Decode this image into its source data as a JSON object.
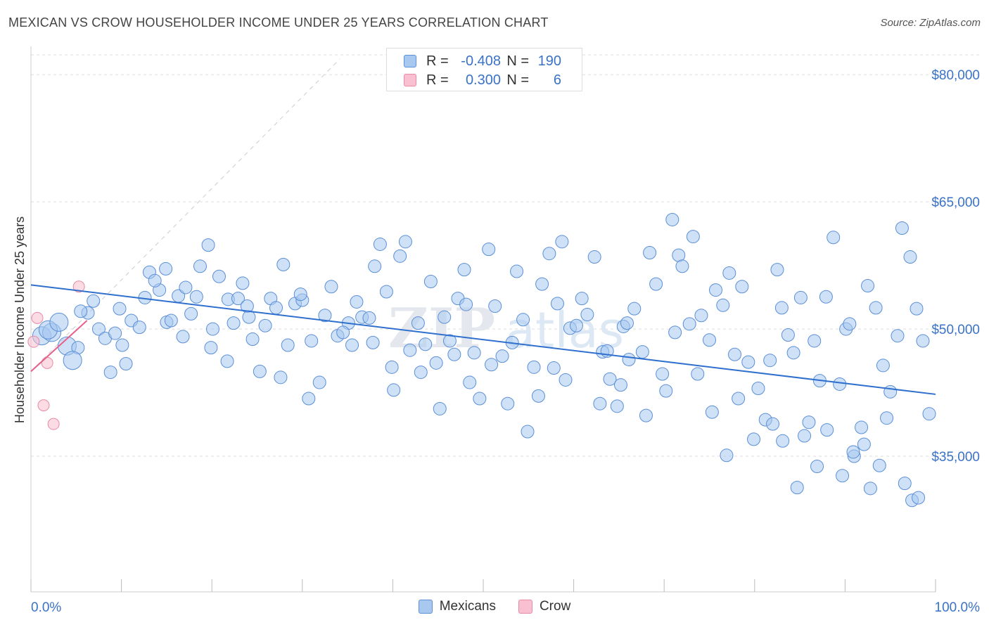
{
  "title": "MEXICAN VS CROW HOUSEHOLDER INCOME UNDER 25 YEARS CORRELATION CHART",
  "source": "Source: ZipAtlas.com",
  "legend": {
    "rows": [
      {
        "r_label": "R =",
        "r_value": "-0.408",
        "n_label": "N =",
        "n_value": "190",
        "color": "#a8c8f0",
        "border": "#5b8fd6"
      },
      {
        "r_label": "R =",
        "r_value": "0.300",
        "n_label": "N =",
        "n_value": "6",
        "color": "#f8c0d0",
        "border": "#e88aa5"
      }
    ],
    "bottom": [
      {
        "label": "Mexicans",
        "color": "#a8c8f0",
        "border": "#5b8fd6"
      },
      {
        "label": "Crow",
        "color": "#f8c0d0",
        "border": "#e88aa5"
      }
    ]
  },
  "chart_data": {
    "type": "scatter",
    "title": "MEXICAN VS CROW HOUSEHOLDER INCOME UNDER 25 YEARS CORRELATION CHART",
    "xlabel": "",
    "ylabel": "Householder Income Under 25 years",
    "xlim": [
      0,
      100
    ],
    "ylim": [
      19000,
      83000
    ],
    "x_tick_labels": [
      "0.0%",
      "100.0%"
    ],
    "y_ticks": [
      35000,
      50000,
      65000,
      80000
    ],
    "y_tick_labels": [
      "$35,000",
      "$50,000",
      "$65,000",
      "$80,000"
    ],
    "grid": true,
    "legend_position": "top-center",
    "watermark": "ZIPatlas",
    "series": [
      {
        "name": "Mexicans",
        "color": "#5b8fd6",
        "fill": "#a8c8f0",
        "trend": {
          "x": [
            0,
            100
          ],
          "y": [
            55200,
            42300
          ]
        },
        "points": [
          [
            1.2,
            49200
          ],
          [
            2.3,
            49600
          ],
          [
            4.0,
            48000
          ],
          [
            5.2,
            47800
          ],
          [
            6.3,
            51900
          ],
          [
            7.5,
            50000
          ],
          [
            8.2,
            48900
          ],
          [
            5.5,
            52100
          ],
          [
            9.3,
            49500
          ],
          [
            10.5,
            45900
          ],
          [
            9.8,
            52400
          ],
          [
            11.1,
            51000
          ],
          [
            12.6,
            53700
          ],
          [
            13.1,
            56700
          ],
          [
            14.2,
            54600
          ],
          [
            15.0,
            50800
          ],
          [
            15.5,
            51000
          ],
          [
            16.3,
            53900
          ],
          [
            17.1,
            54900
          ],
          [
            17.7,
            51800
          ],
          [
            18.7,
            57400
          ],
          [
            19.6,
            59900
          ],
          [
            20.1,
            50000
          ],
          [
            21.7,
            46200
          ],
          [
            21.8,
            53500
          ],
          [
            22.9,
            53600
          ],
          [
            23.4,
            55400
          ],
          [
            23.9,
            52700
          ],
          [
            24.5,
            48800
          ],
          [
            25.3,
            45000
          ],
          [
            26.5,
            53600
          ],
          [
            27.1,
            52500
          ],
          [
            27.9,
            57600
          ],
          [
            28.4,
            48100
          ],
          [
            29.2,
            53000
          ],
          [
            30.0,
            53400
          ],
          [
            31.0,
            48600
          ],
          [
            32.5,
            51600
          ],
          [
            33.2,
            55000
          ],
          [
            33.9,
            49200
          ],
          [
            35.1,
            50700
          ],
          [
            35.5,
            48100
          ],
          [
            36.6,
            51400
          ],
          [
            37.4,
            51300
          ],
          [
            38.0,
            57400
          ],
          [
            38.6,
            60000
          ],
          [
            39.3,
            54400
          ],
          [
            40.8,
            58600
          ],
          [
            41.4,
            60300
          ],
          [
            42.8,
            50700
          ],
          [
            43.6,
            48200
          ],
          [
            44.2,
            55600
          ],
          [
            44.8,
            46000
          ],
          [
            45.7,
            51400
          ],
          [
            46.3,
            48600
          ],
          [
            47.2,
            53600
          ],
          [
            47.9,
            57000
          ],
          [
            48.5,
            43700
          ],
          [
            49.0,
            47200
          ],
          [
            50.6,
            59400
          ],
          [
            51.3,
            52700
          ],
          [
            52.1,
            46800
          ],
          [
            53.2,
            48400
          ],
          [
            53.7,
            56800
          ],
          [
            54.4,
            51100
          ],
          [
            55.6,
            45500
          ],
          [
            56.5,
            55300
          ],
          [
            57.3,
            58900
          ],
          [
            58.2,
            53000
          ],
          [
            58.7,
            60300
          ],
          [
            59.6,
            50100
          ],
          [
            60.3,
            50400
          ],
          [
            61.5,
            51700
          ],
          [
            62.3,
            58500
          ],
          [
            63.2,
            47300
          ],
          [
            64.0,
            44100
          ],
          [
            64.8,
            40900
          ],
          [
            65.5,
            50300
          ],
          [
            65.9,
            50700
          ],
          [
            66.7,
            52400
          ],
          [
            67.6,
            47300
          ],
          [
            68.4,
            59000
          ],
          [
            69.1,
            55300
          ],
          [
            69.8,
            44700
          ],
          [
            70.9,
            62900
          ],
          [
            71.6,
            58700
          ],
          [
            72.0,
            57400
          ],
          [
            72.8,
            50600
          ],
          [
            73.2,
            60900
          ],
          [
            74.1,
            51600
          ],
          [
            75.0,
            48700
          ],
          [
            75.7,
            54600
          ],
          [
            76.5,
            52800
          ],
          [
            77.2,
            56600
          ],
          [
            77.8,
            47000
          ],
          [
            78.6,
            55000
          ],
          [
            79.3,
            46100
          ],
          [
            80.4,
            43000
          ],
          [
            81.2,
            39300
          ],
          [
            81.7,
            46300
          ],
          [
            82.5,
            57000
          ],
          [
            83.0,
            52500
          ],
          [
            83.7,
            49300
          ],
          [
            84.3,
            47200
          ],
          [
            85.1,
            53700
          ],
          [
            86.0,
            39000
          ],
          [
            86.6,
            48600
          ],
          [
            87.2,
            43900
          ],
          [
            87.9,
            53800
          ],
          [
            88.7,
            60800
          ],
          [
            89.4,
            43500
          ],
          [
            90.1,
            50000
          ],
          [
            90.5,
            50600
          ],
          [
            91.0,
            35000
          ],
          [
            91.8,
            38400
          ],
          [
            92.5,
            55100
          ],
          [
            93.4,
            52500
          ],
          [
            94.2,
            45700
          ],
          [
            95.0,
            42600
          ],
          [
            95.8,
            49200
          ],
          [
            96.3,
            61900
          ],
          [
            97.2,
            58500
          ],
          [
            97.9,
            52400
          ],
          [
            98.6,
            48600
          ],
          [
            99.3,
            40000
          ],
          [
            1.9,
            49900
          ],
          [
            3.1,
            50800
          ],
          [
            4.6,
            46300
          ],
          [
            6.9,
            53300
          ],
          [
            8.8,
            44900
          ],
          [
            10.1,
            48100
          ],
          [
            12.0,
            50200
          ],
          [
            13.7,
            55700
          ],
          [
            14.9,
            57100
          ],
          [
            16.8,
            49100
          ],
          [
            18.3,
            53800
          ],
          [
            19.9,
            47800
          ],
          [
            20.8,
            56200
          ],
          [
            22.4,
            50700
          ],
          [
            24.1,
            51400
          ],
          [
            25.9,
            50400
          ],
          [
            27.6,
            44300
          ],
          [
            29.8,
            54100
          ],
          [
            30.7,
            41800
          ],
          [
            31.9,
            43700
          ],
          [
            34.5,
            49600
          ],
          [
            36.0,
            53200
          ],
          [
            37.8,
            48400
          ],
          [
            39.9,
            45500
          ],
          [
            40.1,
            42800
          ],
          [
            41.9,
            47500
          ],
          [
            43.1,
            44900
          ],
          [
            45.2,
            40600
          ],
          [
            46.8,
            47000
          ],
          [
            48.1,
            52900
          ],
          [
            49.6,
            41800
          ],
          [
            50.9,
            45800
          ],
          [
            52.7,
            41200
          ],
          [
            54.9,
            37900
          ],
          [
            56.1,
            42100
          ],
          [
            57.8,
            45400
          ],
          [
            59.1,
            44000
          ],
          [
            60.9,
            53600
          ],
          [
            62.9,
            41200
          ],
          [
            63.7,
            47400
          ],
          [
            65.2,
            43400
          ],
          [
            66.1,
            46400
          ],
          [
            68.0,
            39800
          ],
          [
            70.2,
            42700
          ],
          [
            71.2,
            49600
          ],
          [
            73.7,
            44700
          ],
          [
            75.3,
            40200
          ],
          [
            76.9,
            35100
          ],
          [
            78.2,
            41800
          ],
          [
            79.9,
            37000
          ],
          [
            82.0,
            38800
          ],
          [
            83.1,
            36800
          ],
          [
            84.7,
            31300
          ],
          [
            85.5,
            37400
          ],
          [
            86.9,
            33800
          ],
          [
            88.0,
            38100
          ],
          [
            89.7,
            32700
          ],
          [
            90.9,
            35500
          ],
          [
            92.1,
            36400
          ],
          [
            93.8,
            33900
          ],
          [
            94.6,
            39500
          ],
          [
            96.6,
            31800
          ],
          [
            97.4,
            29800
          ],
          [
            98.1,
            30100
          ],
          [
            92.8,
            31200
          ]
        ]
      },
      {
        "name": "Crow",
        "color": "#e88aa5",
        "fill": "#f8c0d0",
        "trend": {
          "x": [
            0,
            6.2
          ],
          "y": [
            45000,
            51000
          ]
        },
        "points": [
          [
            0.3,
            48500
          ],
          [
            0.7,
            51300
          ],
          [
            1.8,
            46000
          ],
          [
            1.4,
            41000
          ],
          [
            2.5,
            38800
          ],
          [
            5.3,
            55000
          ]
        ]
      }
    ]
  }
}
